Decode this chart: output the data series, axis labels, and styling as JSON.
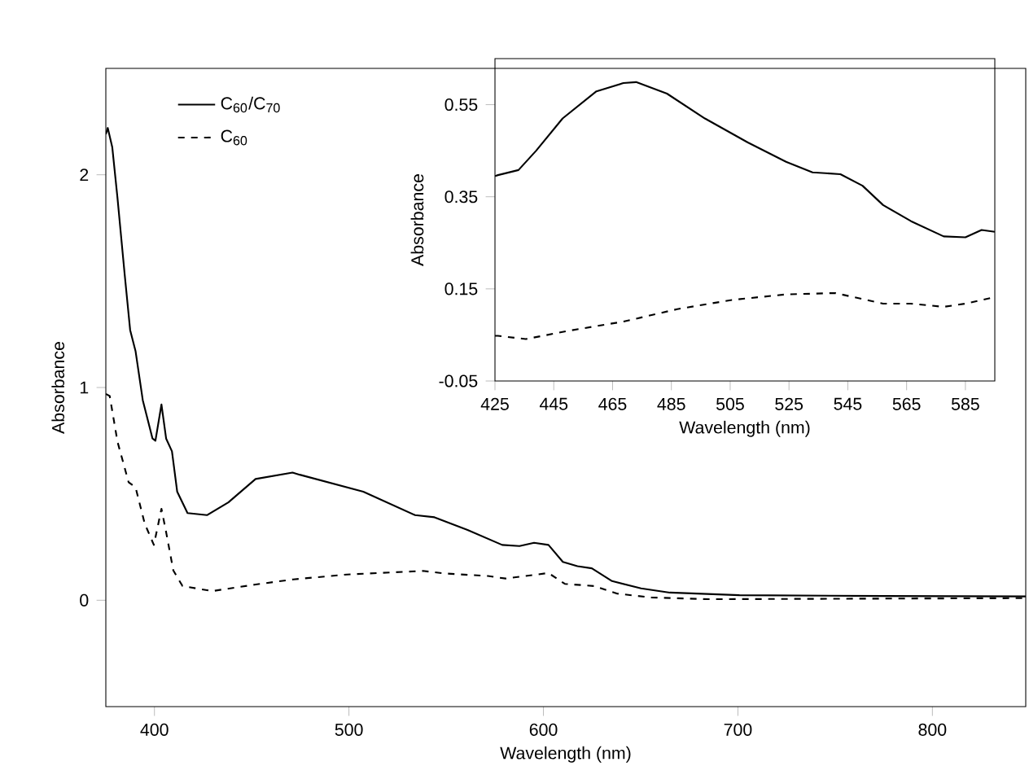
{
  "chart_data": [
    {
      "type": "line",
      "xlabel": "Wavelength (nm)",
      "ylabel": "Absorbance",
      "xlim": [
        375,
        848
      ],
      "ylim": [
        -0.5,
        2.5
      ],
      "xticks": [
        400,
        500,
        600,
        700,
        800
      ],
      "yticks": [
        0,
        1,
        2
      ],
      "legend": "top left",
      "series": [
        {
          "name": "C$_{60}$/C$_{70}$",
          "color": "#000000",
          "line_style": "solid",
          "x": [
            375,
            376,
            378.3,
            381,
            384.7,
            387.5,
            390.3,
            394,
            399,
            400.5,
            403.6,
            406,
            409,
            411.7,
            417,
            427,
            438,
            452,
            471,
            474.7,
            507.4,
            534,
            544,
            561,
            578.8,
            587.7,
            595.2,
            602.6,
            610,
            617.5,
            624.9,
            635.3,
            650.2,
            665,
            700.8,
            775.3,
            848
          ],
          "values": [
            2.19,
            2.22,
            2.13,
            1.89,
            1.53,
            1.27,
            1.17,
            0.94,
            0.76,
            0.75,
            0.92,
            0.76,
            0.7,
            0.51,
            0.41,
            0.4,
            0.46,
            0.57,
            0.6,
            0.59,
            0.51,
            0.4,
            0.39,
            0.33,
            0.26,
            0.255,
            0.27,
            0.26,
            0.18,
            0.16,
            0.15,
            0.09,
            0.056,
            0.036,
            0.024,
            0.02,
            0.018
          ]
        },
        {
          "name": "C$_{60}$",
          "color": "#000000",
          "line_style": "dashed",
          "x": [
            375,
            377,
            381,
            386.7,
            390.3,
            395,
            399.7,
            403.6,
            406,
            409.7,
            414.4,
            429.7,
            452,
            471.4,
            499,
            538,
            549,
            571.4,
            580.5,
            602.6,
            611,
            626,
            638,
            655.6,
            685,
            848
          ],
          "values": [
            0.97,
            0.96,
            0.745,
            0.555,
            0.53,
            0.36,
            0.26,
            0.43,
            0.32,
            0.14,
            0.067,
            0.043,
            0.074,
            0.098,
            0.121,
            0.138,
            0.126,
            0.114,
            0.102,
            0.128,
            0.077,
            0.067,
            0.031,
            0.013,
            0.005,
            0.01
          ]
        }
      ]
    },
    {
      "type": "line",
      "xlabel": "Wavelength (nm)",
      "ylabel": "Absorbance",
      "xlim": [
        425,
        595
      ],
      "ylim": [
        -0.05,
        0.65
      ],
      "xticks": [
        425,
        445,
        465,
        485,
        505,
        525,
        545,
        565,
        585
      ],
      "yticks": [
        -0.05,
        0.15,
        0.35,
        0.55
      ],
      "series": [
        {
          "color": "#000000",
          "line_style": "solid",
          "x": [
            425,
            426,
            433,
            439,
            448,
            459.5,
            468.7,
            473,
            483.5,
            496.4,
            511,
            524,
            533,
            542.5,
            550,
            557,
            566.5,
            577.6,
            585,
            590.5,
            595
          ],
          "values": [
            0.395,
            0.397,
            0.408,
            0.45,
            0.52,
            0.579,
            0.597,
            0.599,
            0.574,
            0.52,
            0.468,
            0.426,
            0.403,
            0.399,
            0.374,
            0.332,
            0.297,
            0.264,
            0.262,
            0.278,
            0.274
          ]
        },
        {
          "color": "#000000",
          "line_style": "dashed",
          "x": [
            425,
            426,
            435.5,
            450,
            468.7,
            487,
            505.6,
            524,
            540.7,
            557,
            566.5,
            577.6,
            585,
            595
          ],
          "values": [
            0.048,
            0.048,
            0.041,
            0.059,
            0.079,
            0.106,
            0.126,
            0.138,
            0.141,
            0.118,
            0.118,
            0.111,
            0.118,
            0.132
          ]
        }
      ]
    }
  ]
}
